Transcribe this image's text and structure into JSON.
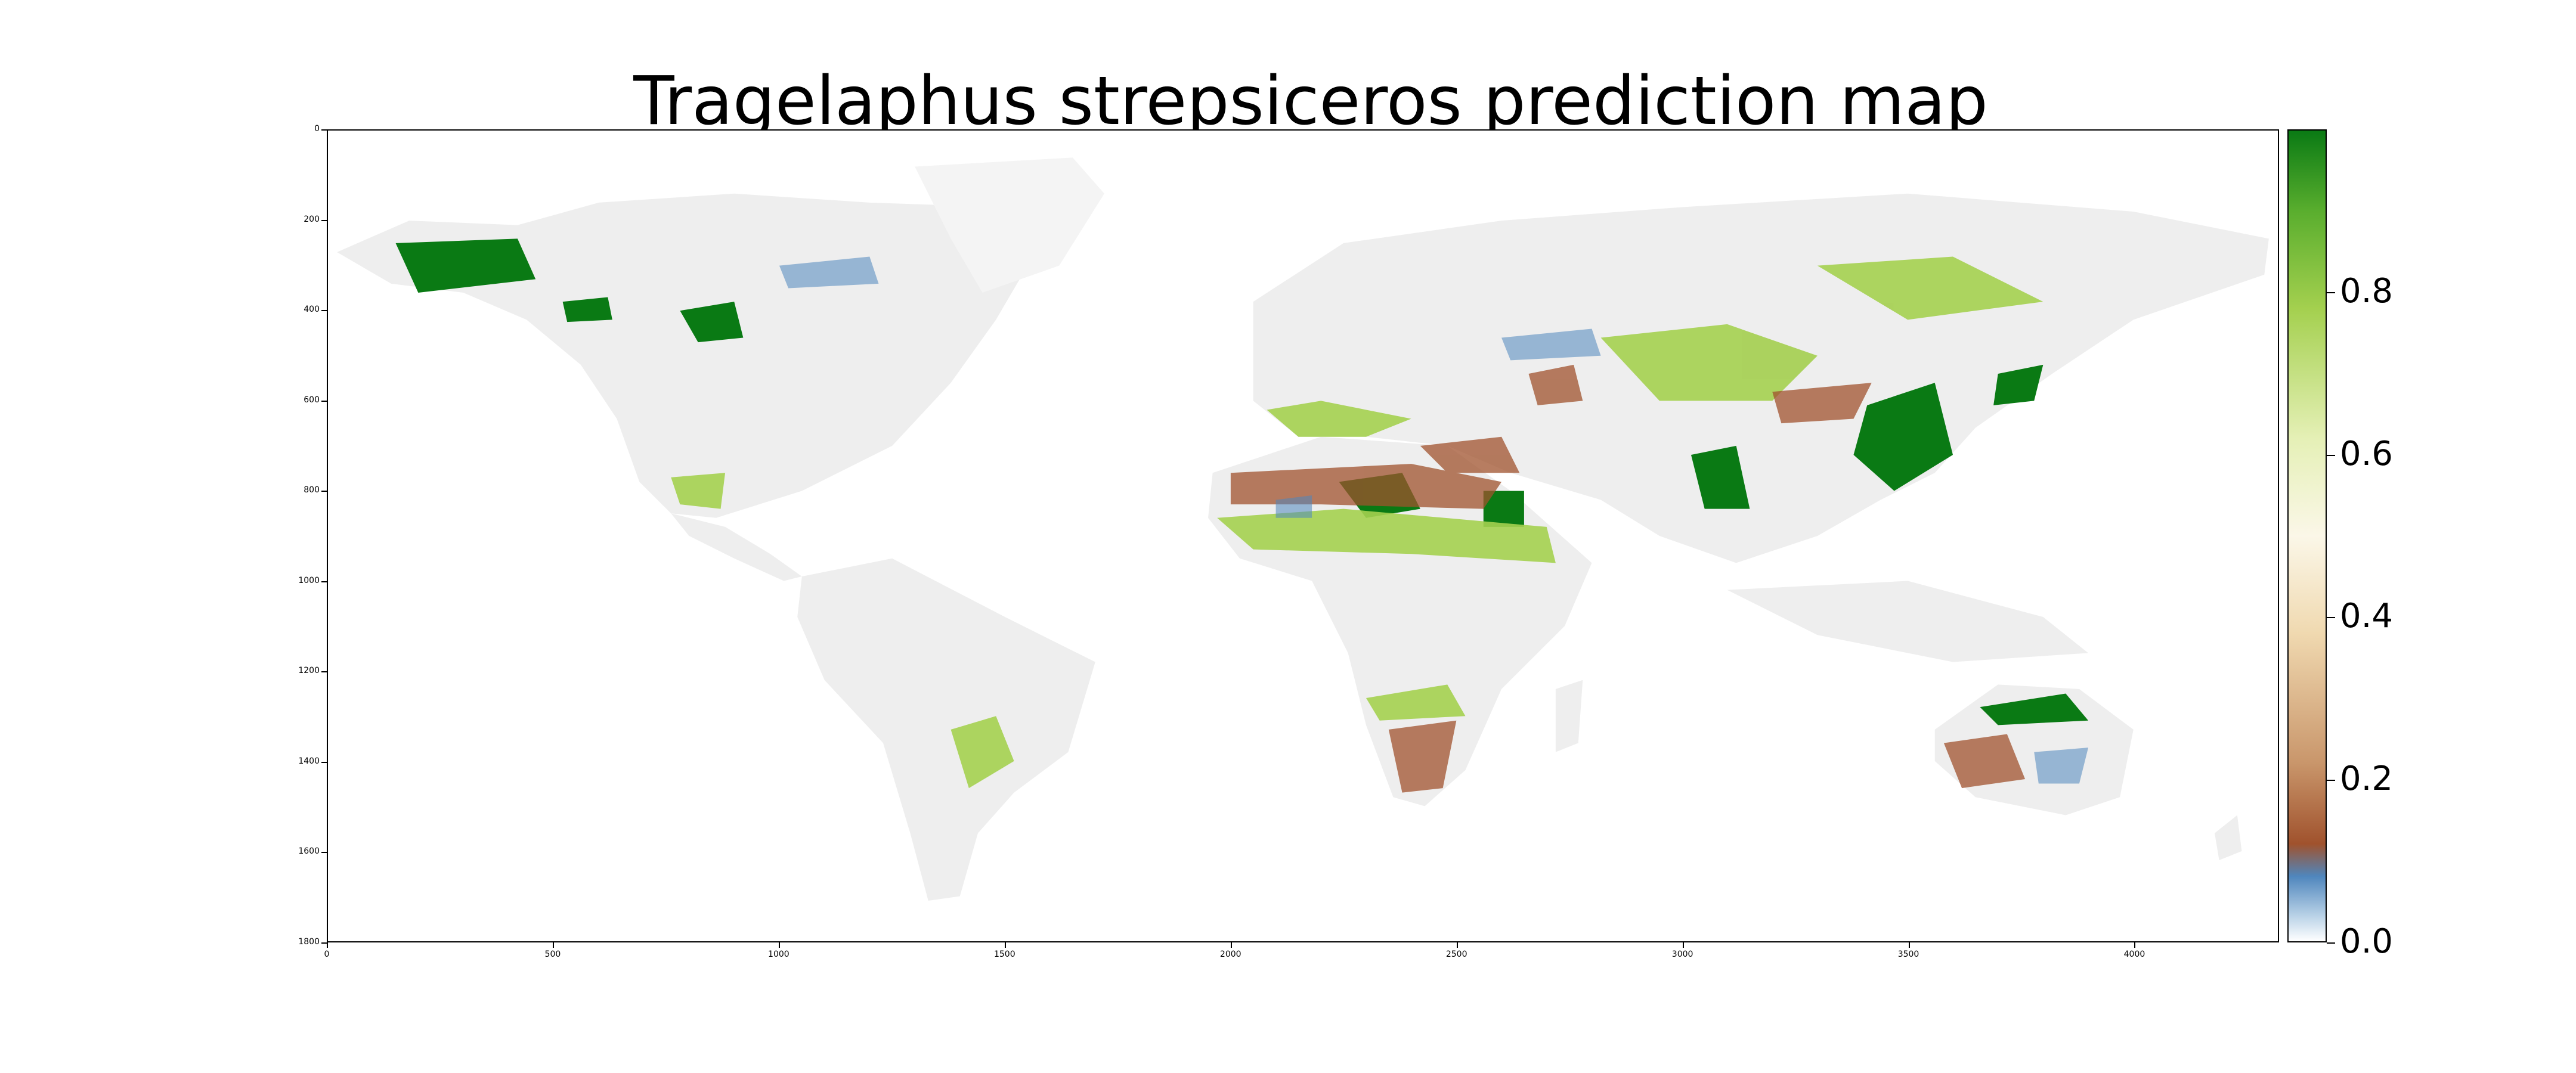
{
  "title": "Tragelaphus strepsiceros prediction map",
  "map": {
    "x_ticks": [
      "0",
      "500",
      "1000",
      "1500",
      "2000",
      "2500",
      "3000",
      "3500",
      "4000"
    ],
    "y_ticks": [
      "0",
      "200",
      "400",
      "600",
      "800",
      "1000",
      "1200",
      "1400",
      "1600",
      "1800"
    ],
    "xlim": [
      0,
      4320
    ],
    "ylim": [
      0,
      1800
    ],
    "land_color": "#eeeeee",
    "sea_color": "#ffffff"
  },
  "colorbar": {
    "ticks": [
      "0.0",
      "0.2",
      "0.4",
      "0.6",
      "0.8"
    ],
    "colormap": [
      "#ffffff",
      "#4f86bd",
      "#a0522d",
      "#f0d9b0",
      "#fbf7e8",
      "#a4d04f",
      "#0a7a14"
    ],
    "range": [
      0.0,
      1.0
    ]
  },
  "legend_colors": {
    "high": "#0a7a14",
    "mid_high": "#7fbf3f",
    "mid": "#fbf7e8",
    "low": "#a0522d",
    "very_low": "#4f86bd"
  }
}
